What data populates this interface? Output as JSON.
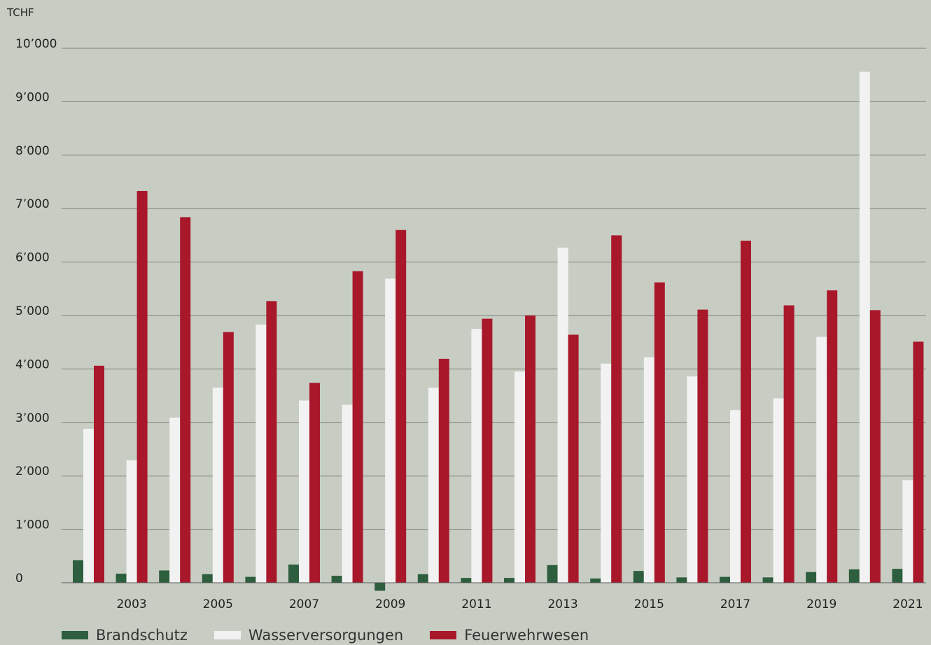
{
  "chart_data": {
    "type": "bar",
    "title": "",
    "unit_label": "TCHF",
    "ylim": [
      0,
      10000
    ],
    "y_ticks": [
      {
        "value": 0,
        "label": "0"
      },
      {
        "value": 1000,
        "label": "1’000"
      },
      {
        "value": 2000,
        "label": "2’000"
      },
      {
        "value": 3000,
        "label": "3’000"
      },
      {
        "value": 4000,
        "label": "4’000"
      },
      {
        "value": 5000,
        "label": "5’000"
      },
      {
        "value": 6000,
        "label": "6’000"
      },
      {
        "value": 7000,
        "label": "7’000"
      },
      {
        "value": 8000,
        "label": "8’000"
      },
      {
        "value": 9000,
        "label": "9’000"
      },
      {
        "value": 10000,
        "label": "10’000"
      }
    ],
    "grid": true,
    "legend_position": "bottom-left",
    "categories": [
      "2002",
      "2003",
      "2004",
      "2005",
      "2006",
      "2007",
      "2008",
      "2009",
      "2010",
      "2011",
      "2012",
      "2013",
      "2014",
      "2015",
      "2016",
      "2017",
      "2018",
      "2019",
      "2020",
      "2021"
    ],
    "x_tick_labels": [
      "2003",
      "2005",
      "2007",
      "2009",
      "2011",
      "2013",
      "2015",
      "2017",
      "2019",
      "2021"
    ],
    "series": [
      {
        "name": "Brandschutz",
        "color": "#2d5e3e",
        "values": [
          420,
          170,
          230,
          160,
          110,
          340,
          130,
          -150,
          160,
          90,
          90,
          330,
          80,
          220,
          100,
          110,
          100,
          200,
          250,
          260
        ]
      },
      {
        "name": "Wasserversorgungen",
        "color": "#f2f2f2",
        "values": [
          2880,
          2290,
          3090,
          3650,
          4830,
          3410,
          3330,
          5690,
          3650,
          4750,
          3950,
          6270,
          4100,
          4220,
          3860,
          3230,
          3450,
          4600,
          9560,
          1920
        ]
      },
      {
        "name": "Feuerwehrwesen",
        "color": "#a8182a",
        "values": [
          4060,
          7330,
          6840,
          4690,
          5270,
          3740,
          5830,
          6600,
          4190,
          4940,
          5000,
          4640,
          6500,
          5620,
          5110,
          6400,
          5190,
          5470,
          5100,
          4510
        ]
      }
    ]
  }
}
